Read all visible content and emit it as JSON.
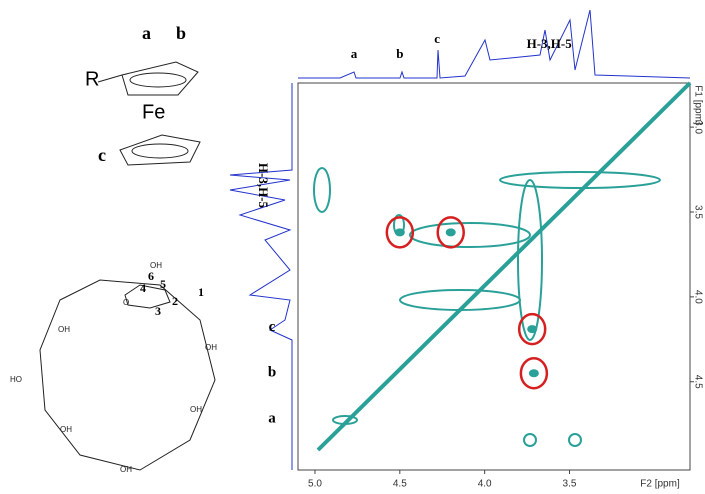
{
  "chart_data": {
    "type": "contour",
    "x_label": "F2 [ppm]",
    "y_label": "F1 [ppm]",
    "xlim": [
      5.1,
      2.79
    ],
    "ylim": [
      2.74,
      5.02
    ],
    "xticks": [
      {
        "value": 5,
        "label": "5.0"
      },
      4.5,
      {
        "value": 4,
        "label": "4.0"
      },
      3.5
    ],
    "yticks": [
      {
        "value": 3,
        "label": "3.0"
      },
      3.5,
      {
        "value": 4,
        "label": "4.0"
      },
      4.5
    ],
    "top_peak_labels": [
      {
        "label": "a",
        "ppm": 4.77
      },
      {
        "label": "b",
        "ppm": 4.5
      },
      {
        "label": "c",
        "ppm": 4.28
      },
      {
        "label": "H-3,H-5",
        "ppm": 3.62
      }
    ],
    "left_peak_labels": [
      {
        "label": "H-3,H-5",
        "ppm": 3.55
      },
      {
        "label": "c",
        "ppm": 4.18
      },
      {
        "label": "b",
        "ppm": 4.45
      },
      {
        "label": "a",
        "ppm": 4.72
      }
    ],
    "cross_peaks": [
      {
        "f2": 4.5,
        "f1": 3.62
      },
      {
        "f2": 4.2,
        "f1": 3.62
      },
      {
        "f2": 3.72,
        "f1": 4.19
      },
      {
        "f2": 3.71,
        "f1": 4.45
      }
    ],
    "contour_color": "#2aa198",
    "highlight_color": "#d62020",
    "projection_color": "#2233cc"
  },
  "structures": {
    "ferrocene": {
      "a": "a",
      "b": "b",
      "c": "c",
      "R": "R",
      "Fe": "Fe"
    },
    "cyclodextrin": {
      "positions": [
        "6",
        "5",
        "4",
        "1",
        "2",
        "3"
      ],
      "oh": "OH",
      "ho": "HO",
      "o": "O"
    }
  }
}
